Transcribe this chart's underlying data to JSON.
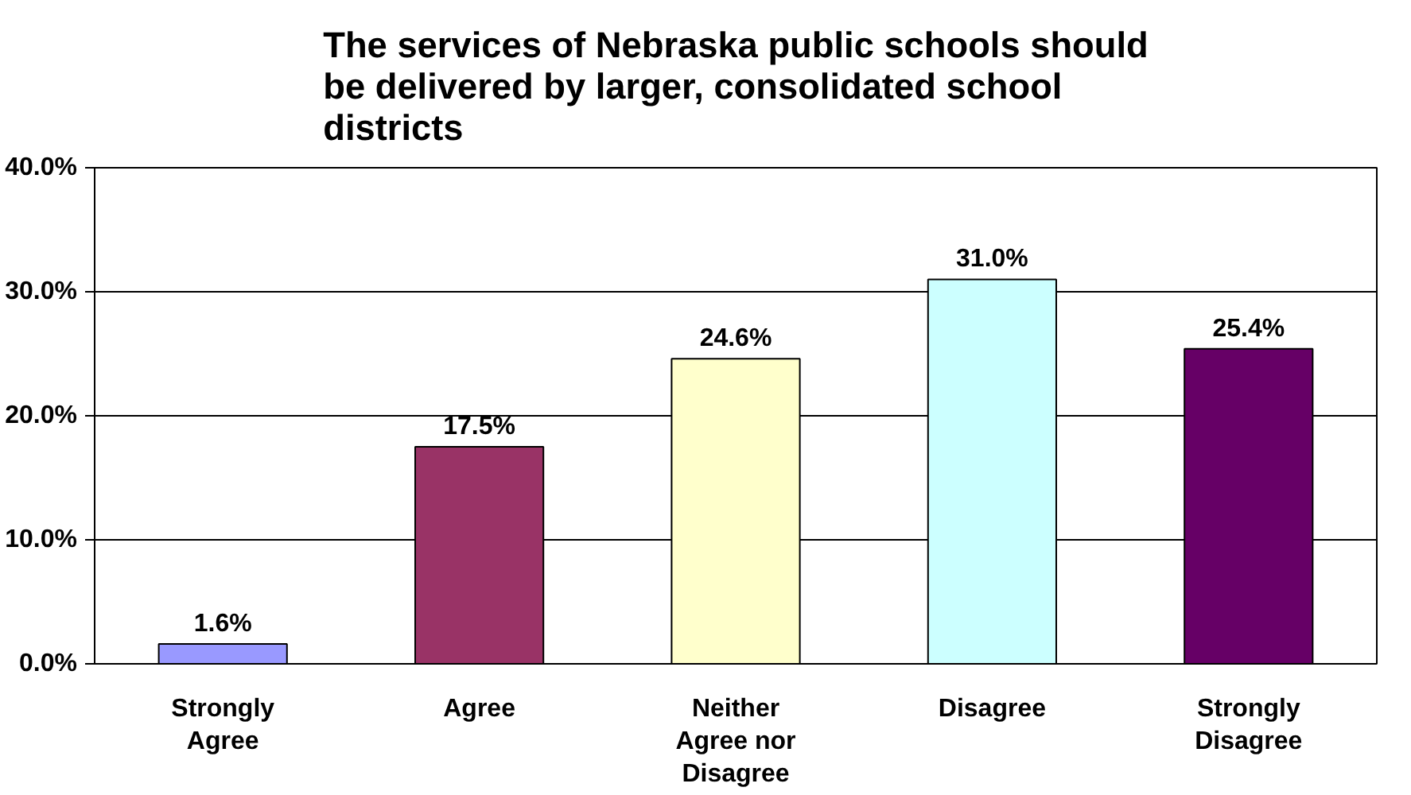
{
  "chart_data": {
    "type": "bar",
    "title": "The services of Nebraska public schools should be delivered by larger, consolidated school districts",
    "categories": [
      "Strongly Agree",
      "Agree",
      "Neither Agree nor Disagree",
      "Disagree",
      "Strongly Disagree"
    ],
    "values": [
      1.6,
      17.5,
      24.6,
      31.0,
      25.4
    ],
    "colors": [
      "#9999ff",
      "#993366",
      "#ffffcc",
      "#ccffff",
      "#660066"
    ],
    "value_labels": [
      "1.6%",
      "17.5%",
      "24.6%",
      "31.0%",
      "25.4%"
    ],
    "ylim": [
      0,
      40
    ],
    "yticks": [
      {
        "value": 0,
        "label": "0.0%"
      },
      {
        "value": 10,
        "label": "10.0%"
      },
      {
        "value": 20,
        "label": "20.0%"
      },
      {
        "value": 30,
        "label": "30.0%"
      },
      {
        "value": 40,
        "label": "40.0%"
      }
    ],
    "grid": "y"
  }
}
